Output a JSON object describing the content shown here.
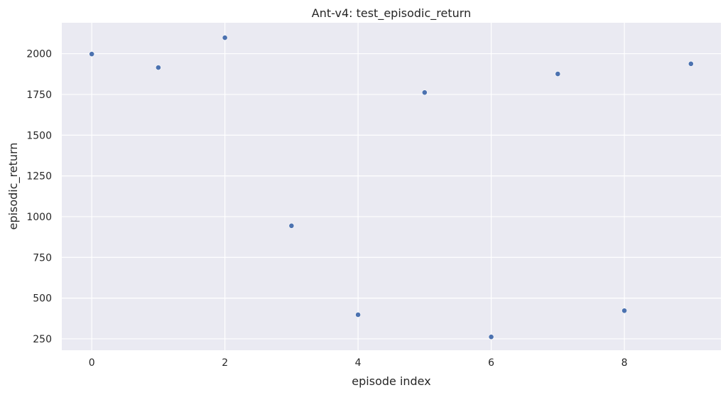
{
  "chart_data": {
    "type": "scatter",
    "title": "Ant-v4: test_episodic_return",
    "xlabel": "episode index",
    "ylabel": "episodic_return",
    "x": [
      0,
      1,
      2,
      3,
      4,
      5,
      6,
      7,
      8,
      9
    ],
    "series": [
      {
        "values": [
          1998,
          1915,
          2098,
          944,
          398,
          1762,
          262,
          1876,
          423,
          1938
        ]
      }
    ],
    "xticks": [
      0,
      2,
      4,
      6,
      8
    ],
    "xtick_labels": [
      "0",
      "2",
      "4",
      "6",
      "8"
    ],
    "yticks": [
      250,
      500,
      750,
      1000,
      1250,
      1500,
      1750,
      2000
    ],
    "ytick_labels": [
      "250",
      "500",
      "750",
      "1000",
      "1250",
      "1500",
      "1750",
      "2000"
    ],
    "xlim": [
      -0.45,
      9.45
    ],
    "ylim": [
      180,
      2190
    ],
    "grid": true,
    "colors": {
      "background": "#eaeaf2",
      "grid": "#ffffff",
      "marker": "#4c72b0",
      "text": "#262626"
    }
  }
}
